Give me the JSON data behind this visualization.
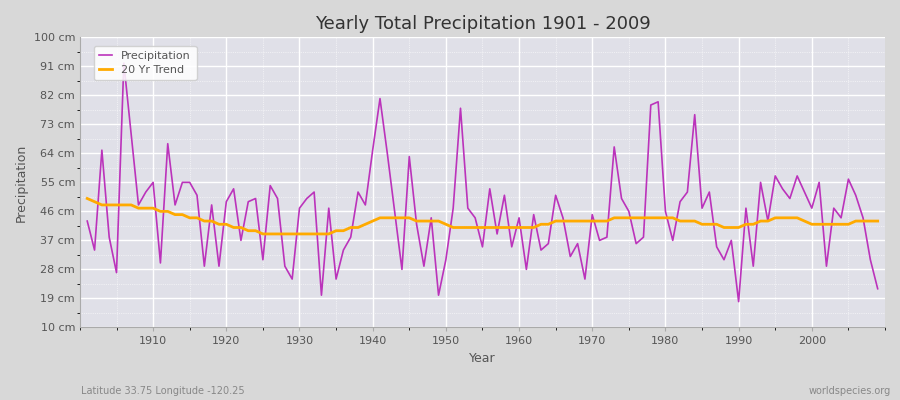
{
  "title": "Yearly Total Precipitation 1901 - 2009",
  "xlabel": "Year",
  "ylabel": "Precipitation",
  "subtitle_left": "Latitude 33.75 Longitude -120.25",
  "subtitle_right": "worldspecies.org",
  "fig_bg_color": "#d8d8d8",
  "plot_bg_color": "#e0e0e8",
  "precip_color": "#bb33bb",
  "trend_color": "#ffaa00",
  "legend_precip": "Precipitation",
  "legend_trend": "20 Yr Trend",
  "yticks": [
    10,
    19,
    28,
    37,
    46,
    55,
    64,
    73,
    82,
    91,
    100
  ],
  "ytick_labels": [
    "10 cm",
    "19 cm",
    "28 cm",
    "37 cm",
    "46 cm",
    "55 cm",
    "64 cm",
    "73 cm",
    "82 cm",
    "91 cm",
    "100 cm"
  ],
  "ylim": [
    10,
    100
  ],
  "xlim": [
    1900,
    2010
  ],
  "xticks": [
    1910,
    1920,
    1930,
    1940,
    1950,
    1960,
    1970,
    1980,
    1990,
    2000
  ],
  "years": [
    1901,
    1902,
    1903,
    1904,
    1905,
    1906,
    1907,
    1908,
    1909,
    1910,
    1911,
    1912,
    1913,
    1914,
    1915,
    1916,
    1917,
    1918,
    1919,
    1920,
    1921,
    1922,
    1923,
    1924,
    1925,
    1926,
    1927,
    1928,
    1929,
    1930,
    1931,
    1932,
    1933,
    1934,
    1935,
    1936,
    1937,
    1938,
    1939,
    1940,
    1941,
    1942,
    1943,
    1944,
    1945,
    1946,
    1947,
    1948,
    1949,
    1950,
    1951,
    1952,
    1953,
    1954,
    1955,
    1956,
    1957,
    1958,
    1959,
    1960,
    1961,
    1962,
    1963,
    1964,
    1965,
    1966,
    1967,
    1968,
    1969,
    1970,
    1971,
    1972,
    1973,
    1974,
    1975,
    1976,
    1977,
    1978,
    1979,
    1980,
    1981,
    1982,
    1983,
    1984,
    1985,
    1986,
    1987,
    1988,
    1989,
    1990,
    1991,
    1992,
    1993,
    1994,
    1995,
    1996,
    1997,
    1998,
    1999,
    2000,
    2001,
    2002,
    2003,
    2004,
    2005,
    2006,
    2007,
    2008,
    2009
  ],
  "precip": [
    43,
    34,
    65,
    38,
    27,
    92,
    70,
    48,
    52,
    55,
    30,
    67,
    48,
    55,
    55,
    51,
    29,
    48,
    29,
    49,
    53,
    37,
    49,
    50,
    31,
    54,
    50,
    29,
    25,
    47,
    50,
    52,
    20,
    47,
    25,
    34,
    38,
    52,
    48,
    65,
    81,
    64,
    46,
    28,
    63,
    42,
    29,
    44,
    20,
    31,
    47,
    78,
    47,
    44,
    35,
    53,
    39,
    51,
    35,
    44,
    28,
    45,
    34,
    36,
    51,
    44,
    32,
    36,
    25,
    45,
    37,
    38,
    66,
    50,
    46,
    36,
    38,
    79,
    80,
    46,
    37,
    49,
    52,
    76,
    47,
    52,
    35,
    31,
    37,
    18,
    47,
    29,
    55,
    43,
    57,
    53,
    50,
    57,
    52,
    47,
    55,
    29,
    47,
    44,
    56,
    51,
    44,
    31,
    22
  ],
  "trend": [
    50,
    49,
    48,
    48,
    48,
    48,
    48,
    47,
    47,
    47,
    46,
    46,
    45,
    45,
    44,
    44,
    43,
    43,
    42,
    42,
    41,
    41,
    40,
    40,
    39,
    39,
    39,
    39,
    39,
    39,
    39,
    39,
    39,
    39,
    40,
    40,
    41,
    41,
    42,
    43,
    44,
    44,
    44,
    44,
    44,
    43,
    43,
    43,
    43,
    42,
    41,
    41,
    41,
    41,
    41,
    41,
    41,
    41,
    41,
    41,
    41,
    41,
    42,
    42,
    43,
    43,
    43,
    43,
    43,
    43,
    43,
    43,
    44,
    44,
    44,
    44,
    44,
    44,
    44,
    44,
    44,
    43,
    43,
    43,
    42,
    42,
    42,
    41,
    41,
    41,
    42,
    42,
    43,
    43,
    44,
    44,
    44,
    44,
    43,
    42,
    42,
    42,
    42,
    42,
    42,
    43,
    43,
    43,
    43
  ]
}
